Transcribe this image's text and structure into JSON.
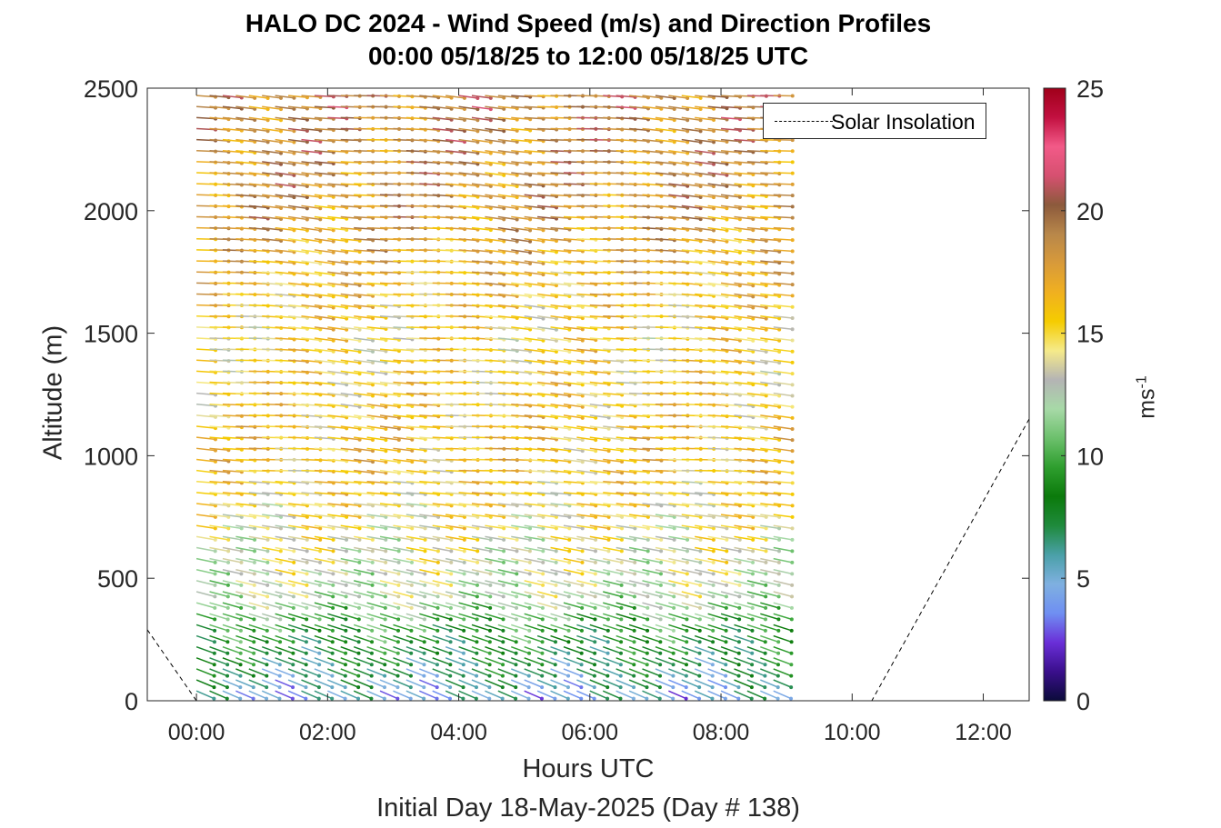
{
  "title": {
    "line1": "HALO DC 2024 - Wind Speed (m/s) and Direction Profiles",
    "line2": "00:00 05/18/25 to 12:00 05/18/25  UTC"
  },
  "chart_data": {
    "type": "wind-barb profile (quiver)",
    "title": "HALO DC 2024 - Wind Speed (m/s) and Direction Profiles",
    "subtitle": "00:00 05/18/25 to 12:00 05/18/25  UTC",
    "xlabel": "Hours UTC",
    "x_sublabel": "Initial Day 18-May-2025 (Day # 138)",
    "ylabel": "Altitude (m)",
    "xlim_hours": [
      -0.75,
      12.7
    ],
    "ylim": [
      0,
      2500
    ],
    "x_ticks": [
      "00:00",
      "02:00",
      "04:00",
      "06:00",
      "08:00",
      "10:00",
      "12:00"
    ],
    "y_ticks": [
      0,
      500,
      1000,
      1500,
      2000,
      2500
    ],
    "colorbar": {
      "label": "ms",
      "label_exponent": "-1",
      "range": [
        0,
        25
      ],
      "ticks": [
        0,
        5,
        10,
        15,
        20,
        25
      ],
      "colors": [
        "#0b0b3a",
        "#3a0f8c",
        "#6a2fd8",
        "#6f8ff2",
        "#7fb0e0",
        "#4aa0a8",
        "#1f8a3c",
        "#0b7a0b",
        "#2e9e2e",
        "#6cc06c",
        "#a7d9a7",
        "#b4b4b4",
        "#f5ea8a",
        "#f5cc00",
        "#f0b020",
        "#d89a3a",
        "#b8874a",
        "#8c5a3c",
        "#d65070",
        "#f25a88",
        "#c21040",
        "#a0001a"
      ]
    },
    "legend": {
      "placement": "top-right",
      "entries": [
        "Solar Insolation"
      ]
    },
    "profile_time_range_hours": [
      0,
      8.8
    ],
    "profile_time_step_hours": 0.2,
    "altitude_range_m": [
      40,
      2500
    ],
    "altitude_step_m": 45,
    "wind_speed_by_altitude_m_s": [
      {
        "altitude": 50,
        "speed": 5
      },
      {
        "altitude": 150,
        "speed": 7
      },
      {
        "altitude": 300,
        "speed": 9
      },
      {
        "altitude": 450,
        "speed": 12.5
      },
      {
        "altitude": 700,
        "speed": 14
      },
      {
        "altitude": 1000,
        "speed": 16
      },
      {
        "altitude": 1500,
        "speed": 15
      },
      {
        "altitude": 2000,
        "speed": 18
      },
      {
        "altitude": 2500,
        "speed": 19
      }
    ],
    "solar_insolation_dashed": [
      {
        "x": -0.75,
        "y": 290
      },
      {
        "x": 0.0,
        "y": 0
      },
      {
        "x": 10.3,
        "y": 0
      },
      {
        "x": 12.7,
        "y": 1150
      }
    ]
  }
}
